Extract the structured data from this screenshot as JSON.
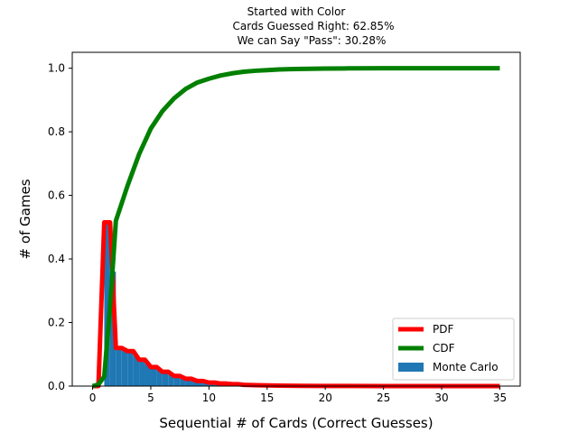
{
  "chart_data": {
    "type": "line",
    "title_lines": [
      "Started with Color",
      "Cards Guessed Right: 62.85%",
      "We can Say \"Pass\": 30.28%"
    ],
    "xlabel": "Sequential # of Cards (Correct Guesses)",
    "ylabel": "# of Games",
    "xlim": [
      -1.75,
      36.75
    ],
    "ylim": [
      0,
      1.05
    ],
    "x_ticks": [
      0,
      5,
      10,
      15,
      20,
      25,
      30,
      35
    ],
    "y_ticks": [
      0.0,
      0.2,
      0.4,
      0.6,
      0.8,
      1.0
    ],
    "y_tick_labels": [
      "0.0",
      "0.2",
      "0.4",
      "0.6",
      "0.8",
      "1.0"
    ],
    "legend_position": "lower-right",
    "series": [
      {
        "name": "PDF",
        "kind": "line",
        "color": "#ff0000",
        "x": [
          0,
          0.5,
          1,
          1.5,
          2,
          2.5,
          3,
          3.5,
          4,
          4.5,
          5,
          5.5,
          6,
          6.5,
          7,
          7.5,
          8,
          8.5,
          9,
          9.5,
          10,
          10.5,
          11,
          11.5,
          12,
          12.5,
          13,
          14,
          15,
          16,
          17,
          18,
          20,
          22,
          25,
          28,
          30,
          33,
          35
        ],
        "y": [
          0,
          0,
          0.515,
          0.515,
          0.12,
          0.12,
          0.11,
          0.11,
          0.083,
          0.083,
          0.06,
          0.06,
          0.045,
          0.045,
          0.032,
          0.032,
          0.023,
          0.023,
          0.016,
          0.016,
          0.011,
          0.011,
          0.008,
          0.008,
          0.006,
          0.006,
          0.004,
          0.003,
          0.002,
          0.0015,
          0.001,
          0.0008,
          0.0004,
          0.0002,
          0.0001,
          0,
          0,
          0,
          0
        ]
      },
      {
        "name": "CDF",
        "kind": "line",
        "color": "#008000",
        "x": [
          0,
          0.5,
          1,
          1.5,
          2,
          3,
          4,
          5,
          6,
          7,
          8,
          9,
          10,
          11,
          12,
          13,
          14,
          15,
          16,
          17,
          18,
          20,
          22,
          25,
          28,
          30,
          33,
          35
        ],
        "y": [
          0,
          0.005,
          0.03,
          0.25,
          0.52,
          0.63,
          0.73,
          0.81,
          0.865,
          0.905,
          0.935,
          0.955,
          0.967,
          0.977,
          0.984,
          0.989,
          0.992,
          0.994,
          0.996,
          0.997,
          0.998,
          0.999,
          0.9995,
          1.0,
          1.0,
          1.0,
          1.0,
          1.0
        ]
      },
      {
        "name": "Monte Carlo",
        "kind": "histogram",
        "color": "#1f77b4",
        "bins": [
          [
            0,
            0.5,
            0.0
          ],
          [
            0.5,
            1,
            0.0
          ],
          [
            1,
            1.5,
            0.51
          ],
          [
            1.5,
            2,
            0.36
          ],
          [
            2,
            2.5,
            0.12
          ],
          [
            2.5,
            3,
            0.115
          ],
          [
            3,
            3.5,
            0.105
          ],
          [
            3.5,
            4,
            0.095
          ],
          [
            4,
            4.5,
            0.08
          ],
          [
            4.5,
            5,
            0.07
          ],
          [
            5,
            5.5,
            0.058
          ],
          [
            5.5,
            6,
            0.05
          ],
          [
            6,
            6.5,
            0.043
          ],
          [
            6.5,
            7,
            0.036
          ],
          [
            7,
            7.5,
            0.03
          ],
          [
            7.5,
            8,
            0.025
          ],
          [
            8,
            8.5,
            0.021
          ],
          [
            8.5,
            9,
            0.017
          ],
          [
            9,
            9.5,
            0.014
          ],
          [
            9.5,
            10,
            0.012
          ],
          [
            10,
            10.5,
            0.01
          ],
          [
            10.5,
            11,
            0.008
          ],
          [
            11,
            11.5,
            0.007
          ],
          [
            11.5,
            12,
            0.006
          ],
          [
            12,
            12.5,
            0.005
          ],
          [
            12.5,
            13,
            0.004
          ],
          [
            13,
            14,
            0.003
          ],
          [
            14,
            15,
            0.002
          ],
          [
            15,
            16,
            0.0015
          ],
          [
            16,
            18,
            0.001
          ],
          [
            18,
            20,
            0.0005
          ],
          [
            20,
            22,
            0.0003
          ]
        ]
      }
    ],
    "legend": [
      {
        "label": "PDF",
        "kind": "line",
        "color": "#ff0000"
      },
      {
        "label": "CDF",
        "kind": "line",
        "color": "#008000"
      },
      {
        "label": "Monte Carlo",
        "kind": "patch",
        "color": "#1f77b4"
      }
    ]
  }
}
